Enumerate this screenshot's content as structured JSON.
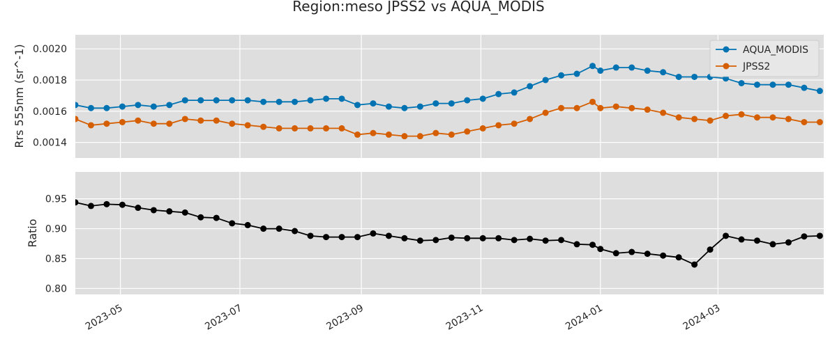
{
  "figure": {
    "title": "Region:meso JPSS2 vs AQUA_MODIS"
  },
  "colors": {
    "panel_bg": "#dedede",
    "grid": "#ffffff",
    "aqua": "#0173b2",
    "jpss2": "#d55e00",
    "ratio": "#000000"
  },
  "chart_data": [
    {
      "type": "line",
      "ylabel": "Rrs 555nm (sr^-1)",
      "xlabel": "",
      "xlim": [
        "2023-04-08",
        "2024-04-24"
      ],
      "ylim": [
        0.0013,
        0.00209
      ],
      "yticks": [
        0.0014,
        0.0016,
        0.0018,
        0.002
      ],
      "ytick_labels": [
        "0.0014",
        "0.0016",
        "0.0018",
        "0.0020"
      ],
      "grid": true,
      "legend": "top-right",
      "x": [
        "2023-04-08",
        "2023-04-16",
        "2023-04-24",
        "2023-05-02",
        "2023-05-10",
        "2023-05-18",
        "2023-05-26",
        "2023-06-03",
        "2023-06-11",
        "2023-06-19",
        "2023-06-27",
        "2023-07-05",
        "2023-07-13",
        "2023-07-21",
        "2023-07-29",
        "2023-08-06",
        "2023-08-14",
        "2023-08-22",
        "2023-08-30",
        "2023-09-07",
        "2023-09-15",
        "2023-09-23",
        "2023-10-01",
        "2023-10-09",
        "2023-10-17",
        "2023-10-25",
        "2023-11-02",
        "2023-11-10",
        "2023-11-18",
        "2023-11-26",
        "2023-12-04",
        "2023-12-12",
        "2023-12-20",
        "2023-12-28",
        "2024-01-01",
        "2024-01-09",
        "2024-01-17",
        "2024-01-25",
        "2024-02-02",
        "2024-02-10",
        "2024-02-18",
        "2024-02-26",
        "2024-03-05",
        "2024-03-13",
        "2024-03-21",
        "2024-03-29",
        "2024-04-06",
        "2024-04-14",
        "2024-04-22"
      ],
      "series": [
        {
          "name": "AQUA_MODIS",
          "values": [
            0.00164,
            0.00162,
            0.00162,
            0.00163,
            0.00164,
            0.00163,
            0.00164,
            0.00167,
            0.00167,
            0.00167,
            0.00167,
            0.00167,
            0.00166,
            0.00166,
            0.00166,
            0.00167,
            0.00168,
            0.00168,
            0.00164,
            0.00165,
            0.00163,
            0.00162,
            0.00163,
            0.00165,
            0.00165,
            0.00167,
            0.00168,
            0.00171,
            0.00172,
            0.00176,
            0.0018,
            0.00183,
            0.00184,
            0.00189,
            0.00186,
            0.00188,
            0.00188,
            0.00186,
            0.00185,
            0.00182,
            0.00182,
            0.00182,
            0.00181,
            0.00178,
            0.00177,
            0.00177,
            0.00177,
            0.00175,
            0.00173
          ]
        },
        {
          "name": "JPSS2",
          "values": [
            0.00155,
            0.00151,
            0.00152,
            0.00153,
            0.00154,
            0.00152,
            0.00152,
            0.00155,
            0.00154,
            0.00154,
            0.00152,
            0.00151,
            0.0015,
            0.00149,
            0.00149,
            0.00149,
            0.00149,
            0.00149,
            0.00145,
            0.00146,
            0.00145,
            0.00144,
            0.00144,
            0.00146,
            0.00145,
            0.00147,
            0.00149,
            0.00151,
            0.00152,
            0.00155,
            0.00159,
            0.00162,
            0.00162,
            0.00166,
            0.00162,
            0.00163,
            0.00162,
            0.00161,
            0.00159,
            0.00156,
            0.00155,
            0.00154,
            0.00157,
            0.00158,
            0.00156,
            0.00156,
            0.00155,
            0.00153,
            0.00153
          ]
        }
      ]
    },
    {
      "type": "line",
      "ylabel": "Ratio",
      "xlabel": "",
      "xlim": [
        "2023-04-08",
        "2024-04-24"
      ],
      "ylim": [
        0.79,
        0.995
      ],
      "yticks": [
        0.8,
        0.85,
        0.9,
        0.95
      ],
      "ytick_labels": [
        "0.80",
        "0.85",
        "0.90",
        "0.95"
      ],
      "xticks": [
        "2023-05-01",
        "2023-07-01",
        "2023-09-01",
        "2023-11-01",
        "2024-01-01",
        "2024-03-01"
      ],
      "xtick_labels": [
        "2023-05",
        "2023-07",
        "2023-09",
        "2023-11",
        "2024-01",
        "2024-03"
      ],
      "grid": true,
      "x": [
        "2023-04-08",
        "2023-04-16",
        "2023-04-24",
        "2023-05-02",
        "2023-05-10",
        "2023-05-18",
        "2023-05-26",
        "2023-06-03",
        "2023-06-11",
        "2023-06-19",
        "2023-06-27",
        "2023-07-05",
        "2023-07-13",
        "2023-07-21",
        "2023-07-29",
        "2023-08-06",
        "2023-08-14",
        "2023-08-22",
        "2023-08-30",
        "2023-09-07",
        "2023-09-15",
        "2023-09-23",
        "2023-10-01",
        "2023-10-09",
        "2023-10-17",
        "2023-10-25",
        "2023-11-02",
        "2023-11-10",
        "2023-11-18",
        "2023-11-26",
        "2023-12-04",
        "2023-12-12",
        "2023-12-20",
        "2023-12-28",
        "2024-01-01",
        "2024-01-09",
        "2024-01-17",
        "2024-01-25",
        "2024-02-02",
        "2024-02-10",
        "2024-02-18",
        "2024-02-26",
        "2024-03-05",
        "2024-03-13",
        "2024-03-21",
        "2024-03-29",
        "2024-04-06",
        "2024-04-14",
        "2024-04-22"
      ],
      "series": [
        {
          "values": [
            0.944,
            0.938,
            0.941,
            0.94,
            0.935,
            0.931,
            0.929,
            0.927,
            0.919,
            0.918,
            0.909,
            0.906,
            0.9,
            0.9,
            0.896,
            0.888,
            0.886,
            0.886,
            0.886,
            0.892,
            0.888,
            0.884,
            0.88,
            0.881,
            0.885,
            0.884,
            0.884,
            0.884,
            0.881,
            0.883,
            0.88,
            0.881,
            0.874,
            0.873,
            0.866,
            0.859,
            0.861,
            0.858,
            0.855,
            0.852,
            0.84,
            0.865,
            0.888,
            0.882,
            0.88,
            0.874,
            0.877,
            0.887,
            0.888
          ]
        }
      ]
    }
  ]
}
